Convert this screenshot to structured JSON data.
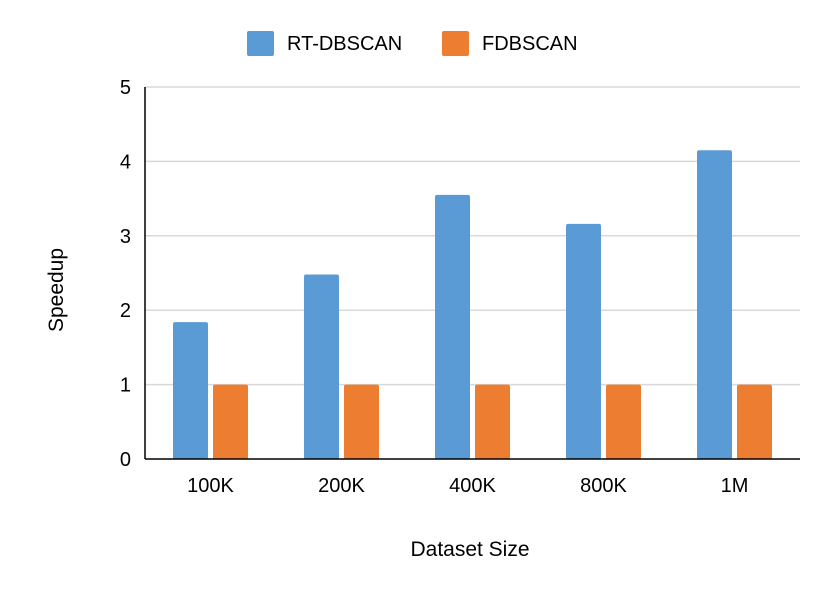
{
  "chart_data": {
    "type": "bar",
    "title": "",
    "categories": [
      "100K",
      "200K",
      "400K",
      "800K",
      "1M"
    ],
    "series": [
      {
        "name": "RT-DBSCAN",
        "values": [
          1.84,
          2.48,
          3.55,
          3.16,
          4.15
        ],
        "color": "#5B9BD5"
      },
      {
        "name": "FDBSCAN",
        "values": [
          1.0,
          1.0,
          1.0,
          1.0,
          1.0
        ],
        "color": "#ED7D31"
      }
    ],
    "xlabel": "Dataset Size",
    "ylabel": "Speedup",
    "ylim": [
      0,
      5
    ],
    "yticks": [
      "0",
      "1",
      "2",
      "3",
      "4",
      "5"
    ],
    "grid": true,
    "legend_position": "top-center"
  }
}
